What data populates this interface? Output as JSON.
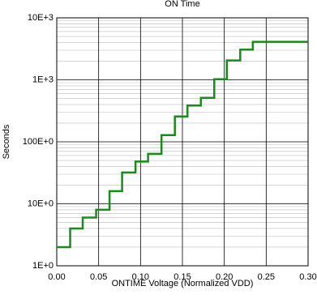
{
  "chart_data": {
    "type": "line",
    "title": "ON Time",
    "x_label": "ONTIME Voltage (Normalized VDD)",
    "y_label": "Seconds",
    "x": [
      0,
      0.016,
      0.016,
      0.031,
      0.031,
      0.047,
      0.047,
      0.063,
      0.063,
      0.078,
      0.078,
      0.094,
      0.094,
      0.109,
      0.109,
      0.125,
      0.125,
      0.141,
      0.141,
      0.156,
      0.156,
      0.172,
      0.172,
      0.188,
      0.188,
      0.203,
      0.203,
      0.219,
      0.219,
      0.234,
      0.234,
      0.3
    ],
    "series": [
      {
        "color": "#1a8a1a",
        "values": [
          2,
          2,
          4,
          4,
          6,
          6,
          8,
          8,
          16,
          16,
          32,
          32,
          48,
          48,
          64,
          64,
          128,
          128,
          256,
          256,
          384,
          384,
          512,
          512,
          1024,
          1024,
          2048,
          2048,
          3072,
          3072,
          4096,
          4096
        ]
      }
    ],
    "xlim": [
      0,
      0.3
    ],
    "xticks": [
      {
        "value": 0,
        "label": "0.00"
      },
      {
        "value": 0.05,
        "label": "0.05"
      },
      {
        "value": 0.1,
        "label": "0.10"
      },
      {
        "value": 0.15,
        "label": "0.15"
      },
      {
        "value": 0.2,
        "label": "0.20"
      },
      {
        "value": 0.25,
        "label": "0.25"
      },
      {
        "value": 0.3,
        "label": "0.30"
      }
    ],
    "ylim": [
      1,
      10000
    ],
    "y_scale": "log",
    "yticks": [
      {
        "value": 1,
        "label": "1E+0"
      },
      {
        "value": 10,
        "label": "10E+0"
      },
      {
        "value": 100,
        "label": "100E+0"
      },
      {
        "value": 1000,
        "label": "1E+3"
      },
      {
        "value": 10000,
        "label": "10E+3"
      }
    ],
    "grid": true
  }
}
